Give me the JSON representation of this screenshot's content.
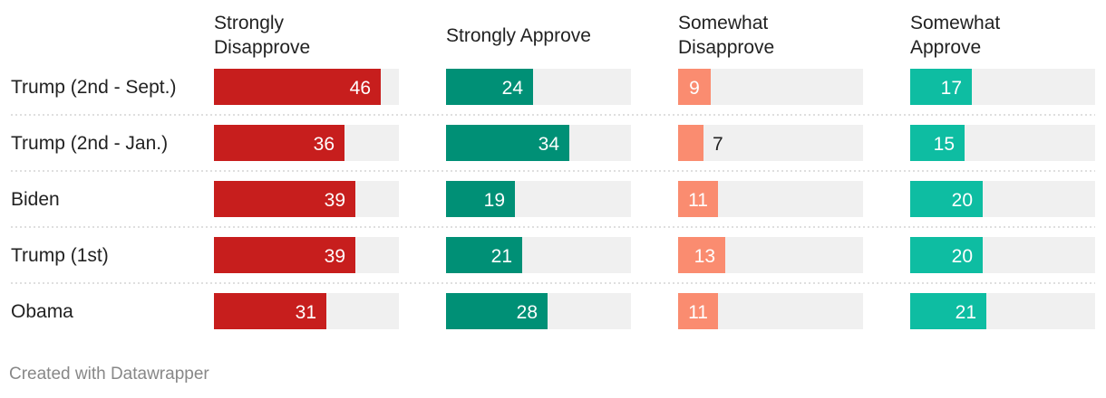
{
  "chart_data": {
    "type": "bar",
    "columns": [
      {
        "label_lines": [
          "Strongly",
          "Disapprove"
        ],
        "color": "#c71e1d"
      },
      {
        "label_lines": [
          "Strongly Approve"
        ],
        "color": "#009076"
      },
      {
        "label_lines": [
          "Somewhat",
          "Disapprove"
        ],
        "color": "#fa8c70"
      },
      {
        "label_lines": [
          "Somewhat",
          "Approve"
        ],
        "color": "#0ebda2"
      }
    ],
    "rows": [
      {
        "label": "Trump (2nd - Sept.)",
        "values": [
          46,
          24,
          9,
          17
        ]
      },
      {
        "label": "Trump (2nd - Jan.)",
        "values": [
          36,
          34,
          7,
          15
        ]
      },
      {
        "label": "Biden",
        "values": [
          39,
          19,
          11,
          20
        ]
      },
      {
        "label": "Trump (1st)",
        "values": [
          39,
          21,
          13,
          20
        ]
      },
      {
        "label": "Obama",
        "values": [
          31,
          28,
          11,
          21
        ]
      }
    ],
    "xlim": [
      0,
      51
    ],
    "background_track_color": "#f0f0f0",
    "separator": "dotted"
  },
  "footer": "Created with Datawrapper"
}
